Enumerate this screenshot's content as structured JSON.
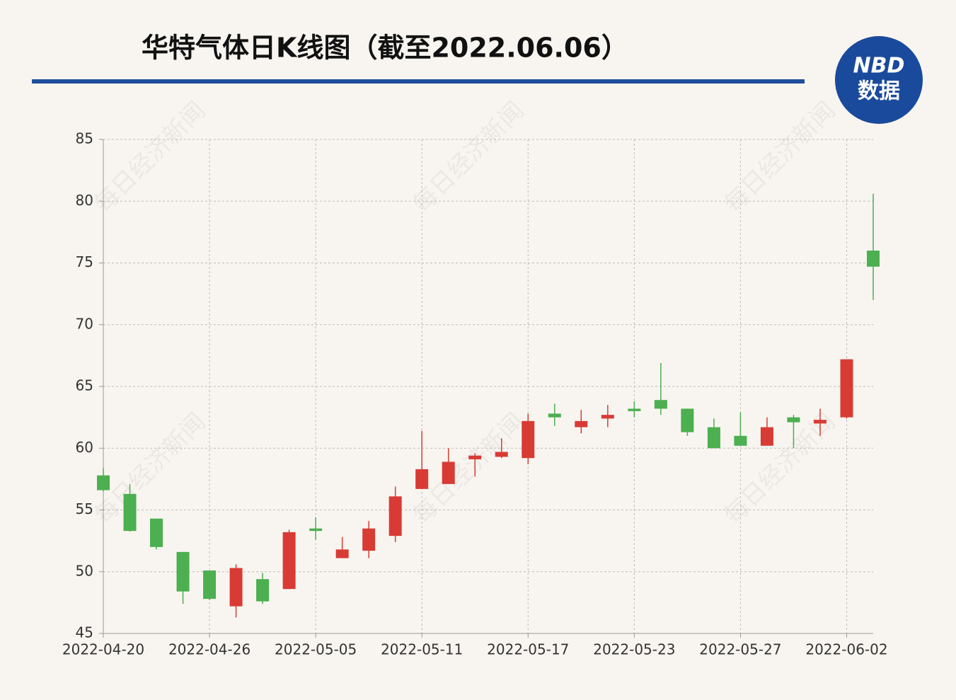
{
  "chart_data": {
    "type": "candlestick",
    "title": "华特气体日K线图（截至2022.06.06）",
    "logo": {
      "top": "NBD",
      "bottom": "数据"
    },
    "watermark": "每日经济新闻",
    "categories": [
      "2022-04-20",
      null,
      null,
      null,
      "2022-04-26",
      null,
      null,
      null,
      "2022-05-05",
      null,
      null,
      null,
      "2022-05-11",
      null,
      null,
      null,
      "2022-05-17",
      null,
      null,
      null,
      "2022-05-23",
      null,
      null,
      null,
      "2022-05-27",
      null,
      null,
      null,
      "2022-06-02",
      null
    ],
    "open": [
      57.8,
      56.3,
      54.3,
      51.6,
      50.1,
      47.2,
      49.4,
      48.6,
      53.5,
      51.1,
      51.7,
      52.9,
      56.7,
      57.1,
      59.1,
      59.3,
      59.2,
      62.8,
      61.7,
      62.4,
      63.2,
      63.9,
      63.2,
      61.7,
      61.0,
      60.2,
      62.5,
      62.0,
      62.5,
      76.0
    ],
    "close": [
      56.6,
      53.3,
      52.0,
      48.4,
      47.8,
      50.3,
      47.6,
      53.2,
      53.3,
      51.8,
      53.5,
      56.1,
      58.3,
      58.9,
      59.4,
      59.7,
      62.2,
      62.5,
      62.2,
      62.7,
      63.0,
      63.2,
      61.3,
      60.0,
      60.2,
      61.7,
      62.1,
      62.3,
      67.2,
      74.7
    ],
    "high": [
      58.4,
      57.1,
      54.3,
      51.6,
      50.1,
      50.6,
      49.9,
      53.4,
      54.4,
      52.8,
      54.1,
      56.9,
      61.4,
      60.0,
      59.6,
      60.8,
      62.8,
      63.6,
      63.1,
      63.5,
      63.8,
      66.9,
      63.2,
      62.4,
      62.9,
      62.5,
      62.7,
      63.2,
      67.2,
      80.6
    ],
    "low": [
      56.5,
      53.25,
      51.8,
      47.4,
      47.7,
      46.3,
      47.4,
      48.6,
      52.6,
      51.1,
      51.1,
      52.4,
      56.7,
      57.1,
      57.7,
      59.2,
      58.7,
      61.8,
      61.2,
      61.7,
      62.5,
      62.7,
      61.0,
      60.0,
      60.2,
      60.2,
      60.0,
      61.0,
      62.4,
      72.0
    ],
    "up_color": "#d83b34",
    "down_color": "#4caf50",
    "ylim": [
      45,
      85
    ],
    "yticks": [
      45,
      50,
      55,
      60,
      65,
      70,
      75,
      80,
      85
    ],
    "grid": true
  }
}
